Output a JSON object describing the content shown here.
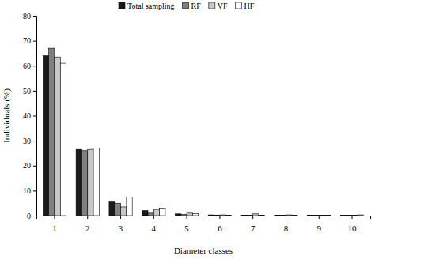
{
  "chart_data": {
    "type": "bar",
    "x_label": "Diameter classes",
    "y_label": "Individuals (%)",
    "categories": [
      "1",
      "2",
      "3",
      "4",
      "5",
      "6",
      "7",
      "8",
      "9",
      "10"
    ],
    "series": [
      {
        "name": "Total sampling",
        "color": "#1a1a1a",
        "values": [
          64,
          26.5,
          5.5,
          2,
          0.7,
          0.3,
          0.2,
          0.2,
          0.2,
          0.1
        ]
      },
      {
        "name": "RF",
        "color": "#808080",
        "values": [
          67,
          26,
          5,
          1,
          0.5,
          0.2,
          0.1,
          0.1,
          0.1,
          0.1
        ]
      },
      {
        "name": "VF",
        "color": "#c8c8c8",
        "values": [
          63.5,
          26.5,
          3.5,
          2.5,
          1,
          0.3,
          0.7,
          0.3,
          0.2,
          0.1
        ]
      },
      {
        "name": "HF",
        "color": "#ffffff",
        "values": [
          61,
          27,
          7.5,
          3,
          0.8,
          0.2,
          0.1,
          0.1,
          0.2,
          0.3
        ]
      }
    ],
    "ylim": [
      0,
      80
    ],
    "yticks": [
      0,
      10,
      20,
      30,
      40,
      50,
      60,
      70,
      80
    ],
    "legend": "top"
  }
}
